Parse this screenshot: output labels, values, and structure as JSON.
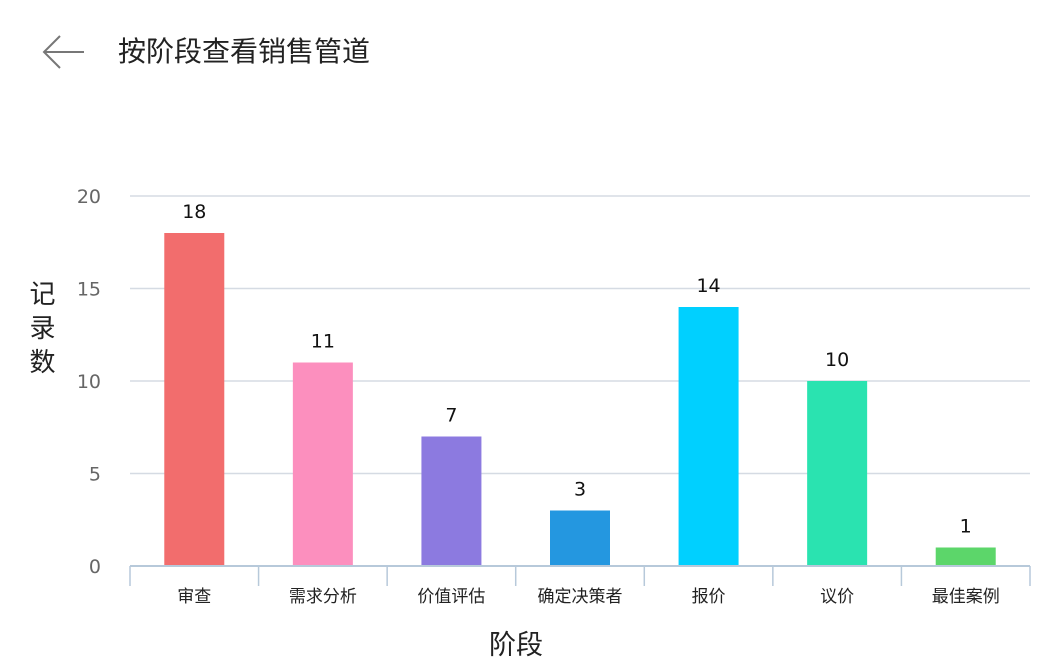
{
  "header": {
    "back_icon": "arrow-left-icon",
    "title": "按阶段查看销售管道"
  },
  "colors": {
    "grid": "#d5dbe3",
    "axis": "#b7c9da",
    "tick_text": "#666666"
  },
  "chart_data": {
    "type": "bar",
    "title": "",
    "xlabel": "阶段",
    "ylabel": "记录数",
    "categories": [
      "审查",
      "需求分析",
      "价值评估",
      "确定决策者",
      "报价",
      "议价",
      "最佳案例"
    ],
    "values": [
      18,
      11,
      7,
      3,
      14,
      10,
      1
    ],
    "colors": [
      "#f26d6d",
      "#fc8fbe",
      "#8c7ae0",
      "#2497e0",
      "#00d0ff",
      "#2ae3b0",
      "#5cd66a"
    ],
    "ylim": [
      0,
      20
    ],
    "yticks": [
      0,
      5,
      10,
      15,
      20
    ],
    "grid": true,
    "legend": "none"
  }
}
